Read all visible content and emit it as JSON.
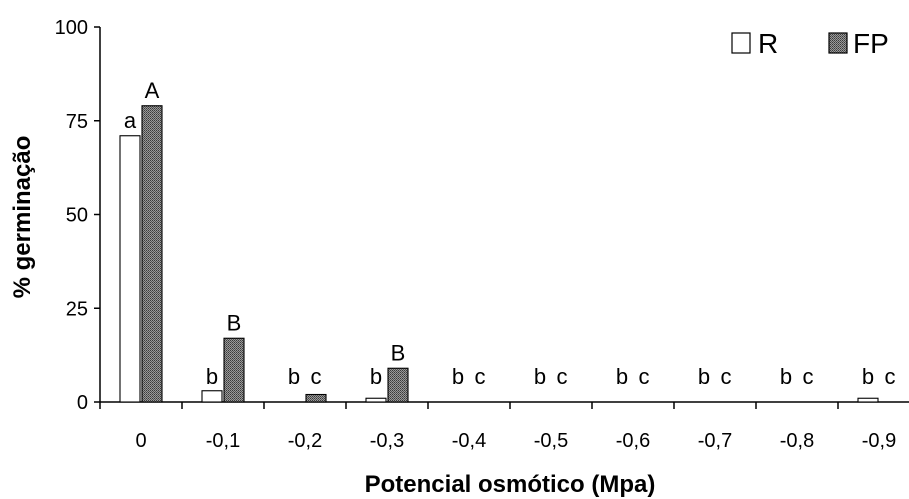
{
  "chart_data": {
    "type": "bar",
    "xlabel": "Potencial osmótico (Mpa)",
    "ylabel": "% germinação",
    "ylim": [
      0,
      100
    ],
    "yticks": [
      "0",
      "25",
      "50",
      "75",
      "100"
    ],
    "categories": [
      "0",
      "-0,1",
      "-0,2",
      "-0,3",
      "-0,4",
      "-0,5",
      "-0,6",
      "-0,7",
      "-0,8",
      "-0,9"
    ],
    "series": [
      {
        "name": "R",
        "values": [
          71,
          3,
          0,
          1,
          0,
          0,
          0,
          0,
          0,
          1
        ],
        "fill": "#ffffff",
        "letters": [
          "a",
          "b",
          "b",
          "b",
          "b",
          "b",
          "b",
          "b",
          "b",
          "b"
        ]
      },
      {
        "name": "FP",
        "values": [
          79,
          17,
          2,
          9,
          0,
          0,
          0,
          0,
          0,
          0
        ],
        "fill": "#8a8a8a",
        "letters": [
          "A",
          "B",
          "c",
          "B",
          "c",
          "c",
          "c",
          "c",
          "c",
          "c"
        ]
      }
    ],
    "legend_position": "top-right",
    "grid": false
  }
}
